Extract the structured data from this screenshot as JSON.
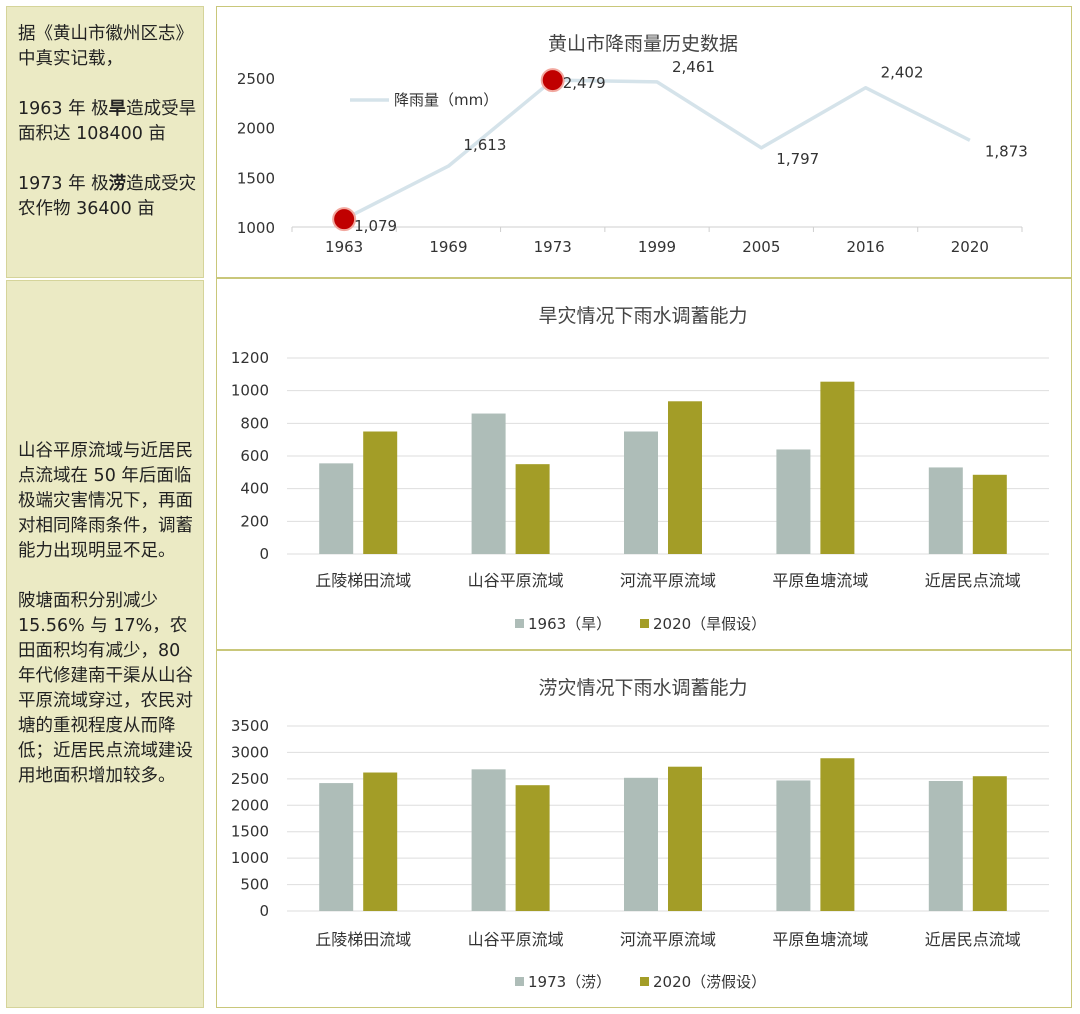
{
  "sidebar": {
    "top": {
      "line1": "据《黄山市徽州区志》中真实记载，",
      "p2a": "1963 年 极",
      "p2b": "旱",
      "p2c": "造成受旱面积达 108400 亩",
      "p3a": "1973 年 极",
      "p3b": "涝",
      "p3c": "造成受灾农作物 36400 亩"
    },
    "bottom": {
      "p1": "山谷平原流域与近居民点流域在 50 年后面临极端灾害情况下，再面对相同降雨条件，调蓄能力出现明显不足。",
      "p2": "陂塘面积分别减少 15.56% 与 17%，农田面积均有减少，80 年代修建南干渠从山谷平原流域穿过，农民对塘的重视程度从而降低；近居民点流域建设用地面积增加较多。"
    }
  },
  "colors": {
    "line": "#d5e3ea",
    "marker": "#c00000",
    "gray": "#aebdb8",
    "olive": "#a39d27"
  },
  "chart_data": [
    {
      "type": "line",
      "title": "黄山市降雨量历史数据",
      "categories": [
        "1963",
        "1969",
        "1973",
        "1999",
        "2005",
        "2016",
        "2020"
      ],
      "series": [
        {
          "name": "降雨量（mm）",
          "values": [
            1079,
            1613,
            2479,
            2461,
            1797,
            2402,
            1873
          ]
        }
      ],
      "data_labels": [
        "1,079",
        "1,613",
        "2,479",
        "2,461",
        "1,797",
        "2,402",
        "1,873"
      ],
      "highlighted": [
        "1963",
        "1973"
      ],
      "yticks": [
        "1000",
        "1500",
        "2000",
        "2500"
      ],
      "ylim": [
        1000,
        2500
      ],
      "legend": "top-left"
    },
    {
      "type": "bar",
      "title": "旱灾情况下雨水调蓄能力",
      "categories": [
        "丘陵梯田流域",
        "山谷平原流域",
        "河流平原流域",
        "平原鱼塘流域",
        "近居民点流域"
      ],
      "series": [
        {
          "name": "1963（旱）",
          "values": [
            555,
            860,
            750,
            640,
            530
          ]
        },
        {
          "name": "2020（旱假设）",
          "values": [
            750,
            550,
            935,
            1055,
            485
          ]
        }
      ],
      "yticks": [
        "0",
        "200",
        "400",
        "600",
        "800",
        "1000",
        "1200"
      ],
      "ylim": [
        0,
        1200
      ],
      "legend": "bottom"
    },
    {
      "type": "bar",
      "title": "涝灾情况下雨水调蓄能力",
      "categories": [
        "丘陵梯田流域",
        "山谷平原流域",
        "河流平原流域",
        "平原鱼塘流域",
        "近居民点流域"
      ],
      "series": [
        {
          "name": "1973（涝）",
          "values": [
            2420,
            2680,
            2520,
            2470,
            2460
          ]
        },
        {
          "name": "2020（涝假设）",
          "values": [
            2620,
            2380,
            2730,
            2890,
            2550
          ]
        }
      ],
      "yticks": [
        "0",
        "500",
        "1000",
        "1500",
        "2000",
        "2500",
        "3000",
        "3500"
      ],
      "ylim": [
        0,
        3500
      ],
      "legend": "bottom"
    }
  ]
}
